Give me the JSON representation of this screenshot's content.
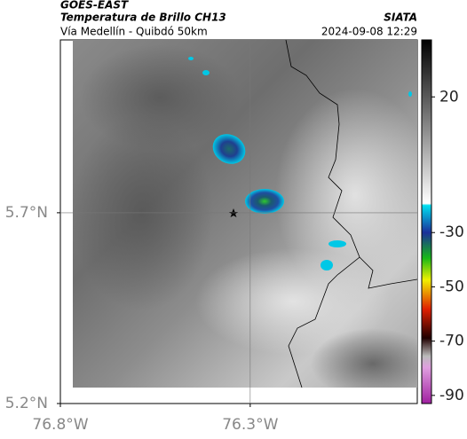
{
  "header": {
    "title": "GOES-EAST",
    "subtitle": "Temperatura de Brillo CH13",
    "source": "SIATA",
    "route": "Vía Medellín - Quibdó 50km",
    "datetime": "2024-09-08 12:29"
  },
  "map": {
    "lonlim": [
      -76.8,
      -75.86
    ],
    "latlim": [
      5.2,
      6.153
    ],
    "lonticks": [
      {
        "value": -76.8,
        "label": "76.8°W"
      },
      {
        "value": -76.3,
        "label": "76.3°W"
      }
    ],
    "latticks": [
      {
        "value": 5.7,
        "label": "5.7°N"
      },
      {
        "value": 5.2,
        "label": "5.2°N"
      }
    ],
    "grid_lines": [
      {
        "lon": -76.3
      },
      {
        "lat": 5.7
      }
    ]
  },
  "colorbar": {
    "lim": [
      -93,
      41
    ],
    "ticks": [
      20,
      -30,
      -50,
      -70,
      -90
    ]
  }
}
